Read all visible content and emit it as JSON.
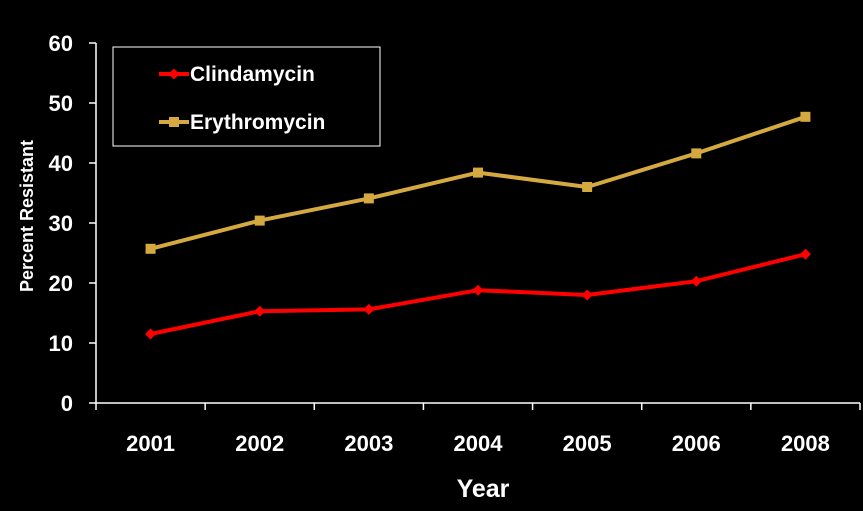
{
  "chart_data": {
    "type": "line",
    "xlabel": "Year",
    "ylabel": "Percent Resistant",
    "categories": [
      "2001",
      "2002",
      "2003",
      "2004",
      "2005",
      "2006",
      "2008"
    ],
    "ylim": [
      0,
      60
    ],
    "yticks": [
      0,
      10,
      20,
      30,
      40,
      50,
      60
    ],
    "grid": false,
    "legend_position": "top-left",
    "series": [
      {
        "name": "Clindamycin",
        "color": "#ff0000",
        "marker": "diamond",
        "values": [
          11.5,
          15.3,
          15.6,
          18.8,
          18.0,
          20.3,
          24.8
        ]
      },
      {
        "name": "Erythromycin",
        "color": "#d4aa40",
        "marker": "square",
        "values": [
          25.7,
          30.4,
          34.1,
          38.4,
          36.0,
          41.6,
          47.7
        ]
      }
    ],
    "background": "#000000",
    "text_color": "#ffffff"
  }
}
